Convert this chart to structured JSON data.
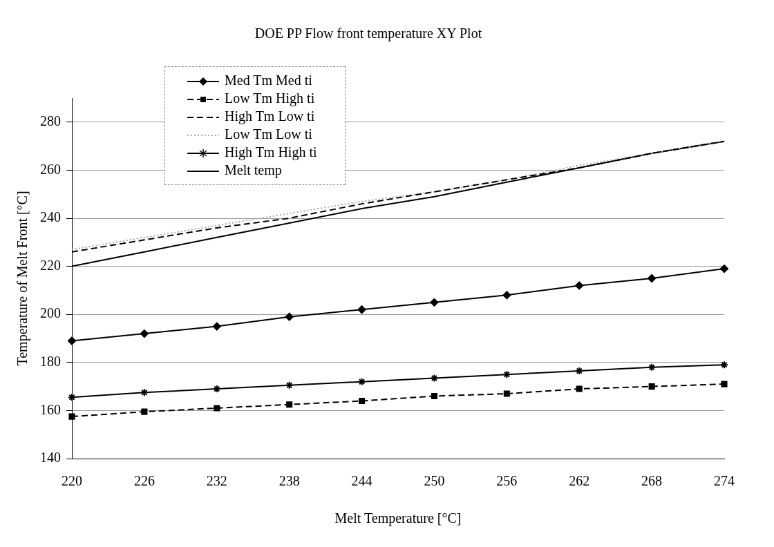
{
  "chart_data": {
    "type": "line",
    "title": "DOE PP Flow front temperature XY Plot",
    "xlabel": "Melt Temperature [°C]",
    "ylabel": "Temperature of Melt Front [°C]",
    "categories": [
      "220",
      "226",
      "232",
      "238",
      "244",
      "250",
      "256",
      "262",
      "268",
      "274"
    ],
    "series": [
      {
        "name": "Med Tm Med ti",
        "color": "#000000",
        "marker": "diamond",
        "line_style": "solid",
        "values": [
          189,
          192,
          195,
          199,
          202,
          205,
          208,
          212,
          215,
          219
        ]
      },
      {
        "name": "Low Tm High ti",
        "color": "#000000",
        "marker": "square",
        "line_style": "dashed",
        "values": [
          157.5,
          159.5,
          161,
          162.5,
          164,
          166,
          167,
          169,
          170,
          171
        ]
      },
      {
        "name": "High Tm Low ti",
        "color": "#000000",
        "marker": "none",
        "line_style": "dashed",
        "values": [
          226,
          231,
          236,
          240,
          246,
          251,
          256,
          261,
          267,
          272
        ]
      },
      {
        "name": "Low Tm Low ti",
        "color": "#aaaaaa",
        "marker": "none",
        "line_style": "dotted",
        "values": [
          227,
          232,
          237,
          242,
          247,
          251,
          256,
          262,
          267,
          272
        ]
      },
      {
        "name": "High Tm High ti",
        "color": "#000000",
        "marker": "cross",
        "line_style": "solid",
        "values": [
          165.5,
          167.5,
          169,
          170.5,
          172,
          173.5,
          175,
          176.5,
          178,
          179
        ]
      },
      {
        "name": "Melt temp",
        "color": "#000000",
        "marker": "none",
        "line_style": "solid",
        "values": [
          220,
          226,
          232,
          238,
          244,
          249,
          255,
          261,
          267,
          272
        ]
      }
    ],
    "ylim": [
      140,
      290
    ],
    "yticks": [
      140,
      160,
      180,
      200,
      220,
      240,
      260,
      280
    ],
    "grid": "y",
    "legend": "top left"
  }
}
